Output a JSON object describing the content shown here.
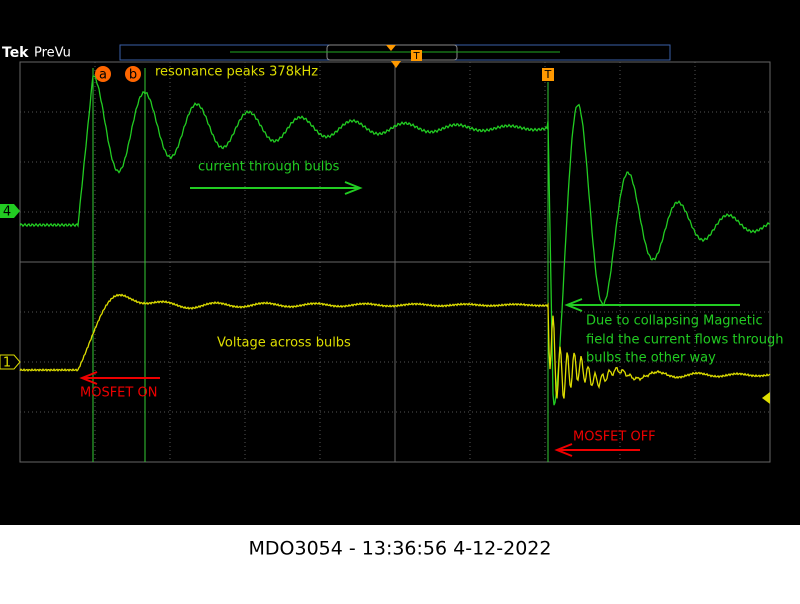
{
  "header": {
    "brand": "Tek",
    "mode": "PreVu"
  },
  "trigger": {
    "record_marker": "T",
    "screen_marker": "T"
  },
  "cursors": {
    "a": "a",
    "b": "b"
  },
  "channels": {
    "ch4": "4",
    "ch1": "1"
  },
  "annotations": {
    "resonance": "resonance peaks 378kHz",
    "current": "current through bulbs",
    "voltage": "Voltage across bulbs",
    "mosfet_on": "MOSFET ON",
    "collapse": [
      "Due to collapsing Magnetic",
      "field the current flows through",
      "bulbs the other way"
    ],
    "mosfet_off": "MOSFET OFF"
  },
  "footer": {
    "caption": "MDO3054 - 13:36:56   4-12-2022"
  }
}
